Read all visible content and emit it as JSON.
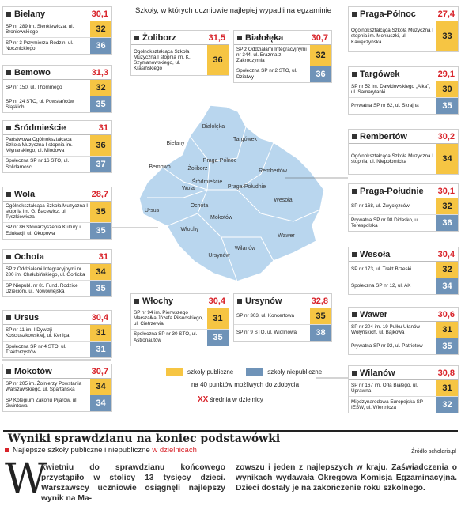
{
  "header": {
    "title": "Szkoły, w których uczniowie najlepiej wypadli na egzaminie"
  },
  "districts": [
    {
      "name": "Bielany",
      "average": "30,1",
      "schools": [
        {
          "name": "SP nr 289 im. Sienkiewicza, ul. Broniewskiego",
          "score": "32",
          "color": "#f6c543"
        },
        {
          "name": "SP nr 3 Przymierza Rodzin, ul. Nocznickiego",
          "score": "36",
          "color": "#6f93b8"
        }
      ]
    },
    {
      "name": "Bemowo",
      "average": "31,3",
      "schools": [
        {
          "name": "SP nr 150, ul. Thommego",
          "score": "32",
          "color": "#f6c543"
        },
        {
          "name": "SP nr 24 STO, ul. Powstańców Śląskich",
          "score": "35",
          "color": "#6f93b8"
        }
      ]
    },
    {
      "name": "Śródmieście",
      "average": "31",
      "schools": [
        {
          "name": "Państwowa Ogólnokształcąca Szkoła Muzyczna I stopnia im. Młynarskiego, ul. Miodowa",
          "score": "36",
          "color": "#f6c543"
        },
        {
          "name": "Społeczna SP nr 16 STO, ul. Solidarności",
          "score": "37",
          "color": "#6f93b8"
        }
      ]
    },
    {
      "name": "Wola",
      "average": "28,7",
      "schools": [
        {
          "name": "Ogólnokształcąca Szkoła Muzyczna I stopnia im. G. Bacewicz, ul. Tyszkiewicza",
          "score": "35",
          "color": "#f6c543"
        },
        {
          "name": "SP nr 86 Stowarzyszenia Kultury i Edukacji, ul. Okopowa",
          "score": "35",
          "color": "#6f93b8"
        }
      ]
    },
    {
      "name": "Ochota",
      "average": "31",
      "schools": [
        {
          "name": "SP z Oddziałami Integracyjnymi nr 280 im. Chałubińskiego, ul. Gorlicka",
          "score": "34",
          "color": "#f6c543"
        },
        {
          "name": "SP Niepubl. nr 81 Fund. Rodzice Dzieciom, ul. Nowowiejska",
          "score": "35",
          "color": "#6f93b8"
        }
      ]
    },
    {
      "name": "Ursus",
      "average": "30,4",
      "schools": [
        {
          "name": "SP nr 11 im. I Dywizji Kościuszkowskiej, ul. Keniga",
          "score": "31",
          "color": "#f6c543"
        },
        {
          "name": "Społeczna SP nr 4 STO, ul. Traktorzystów",
          "score": "31",
          "color": "#6f93b8"
        }
      ]
    },
    {
      "name": "Mokotów",
      "average": "30,7",
      "schools": [
        {
          "name": "SP nr 205 im. Żołnierzy Powstania Warszawskiego, ul. Spartańska",
          "score": "34",
          "color": "#f6c543"
        },
        {
          "name": "SP Kolegium Zakonu Pijarów, ul. Gwintowa",
          "score": "34",
          "color": "#6f93b8"
        }
      ]
    },
    {
      "name": "Żoliborz",
      "average": "31,5",
      "schools": [
        {
          "name": "Ogólnokształcąca Szkoła Muzyczna I stopnia im. K. Szymanowskiego, ul. Krasińskiego",
          "score": "36",
          "color": "#f6c543"
        }
      ]
    },
    {
      "name": "Białołęka",
      "average": "30,7",
      "schools": [
        {
          "name": "SP z Oddziałami Integracyjnymi nr 344, ul. Erazma z Zakroczymia",
          "score": "32",
          "color": "#f6c543"
        },
        {
          "name": "Społeczna SP nr 2 STO, ul. Dziatwy",
          "score": "36",
          "color": "#6f93b8"
        }
      ]
    },
    {
      "name": "Włochy",
      "average": "30,4",
      "schools": [
        {
          "name": "SP nr 94 im. Pierwszego Marszałka Józefa Piłsudskiego, ul. Cietrzewia",
          "score": "31",
          "color": "#f6c543"
        },
        {
          "name": "Społeczna SP nr 30 STO, ul. Astronautów",
          "score": "35",
          "color": "#6f93b8"
        }
      ]
    },
    {
      "name": "Ursynów",
      "average": "32,8",
      "schools": [
        {
          "name": "SP nr 303, ul. Koncertowa",
          "score": "35",
          "color": "#f6c543"
        },
        {
          "name": "SP nr 9 STO, ul. Wiolinowa",
          "score": "38",
          "color": "#6f93b8"
        }
      ]
    },
    {
      "name": "Praga-Północ",
      "average": "27,4",
      "schools": [
        {
          "name": "Ogólnokształcąca Szkoła Muzyczna I stopnia im. Moniuszki, ul. Kawęczyńska",
          "score": "33",
          "color": "#f6c543"
        }
      ]
    },
    {
      "name": "Targówek",
      "average": "29,1",
      "schools": [
        {
          "name": "SP nr 52 im. Dawidowskiego „Alka”, ul. Samarytanki",
          "score": "30",
          "color": "#f6c543"
        },
        {
          "name": "Prywatna SP nr 62, ul. Skrajna",
          "score": "35",
          "color": "#6f93b8"
        }
      ]
    },
    {
      "name": "Rembertów",
      "average": "30,2",
      "schools": [
        {
          "name": "Ogólnokształcąca Szkoła Muzyczna I stopnia, ul. Niepołomicka",
          "score": "34",
          "color": "#f6c543"
        }
      ]
    },
    {
      "name": "Praga-Południe",
      "average": "30,1",
      "schools": [
        {
          "name": "SP nr 168, ul. Zwycięzców",
          "score": "32",
          "color": "#f6c543"
        },
        {
          "name": "Prywatna SP nr 98 Didasko, ul. Terespolska",
          "score": "36",
          "color": "#6f93b8"
        }
      ]
    },
    {
      "name": "Wesoła",
      "average": "30,4",
      "schools": [
        {
          "name": "SP nr 173, ul. Trakt Brzeski",
          "score": "32",
          "color": "#f6c543"
        },
        {
          "name": "Społeczna SP nr 12, ul. AK",
          "score": "34",
          "color": "#6f93b8"
        }
      ]
    },
    {
      "name": "Wawer",
      "average": "30,6",
      "schools": [
        {
          "name": "SP nr 204 im. 19 Pułku Ułanów Wołyńskich, ul. Bajkowa",
          "score": "31",
          "color": "#f6c543"
        },
        {
          "name": "Prywatna SP nr 92, ul. Patriotów",
          "score": "35",
          "color": "#6f93b8"
        }
      ]
    },
    {
      "name": "Wilanów",
      "average": "30,8",
      "schools": [
        {
          "name": "SP nr 167 im. Orła Białego, ul. Uprawna",
          "score": "31",
          "color": "#f6c543"
        },
        {
          "name": "Międzynarodowa Europejska SP IESW, ul. Wiertnicza",
          "score": "32",
          "color": "#6f93b8"
        }
      ]
    }
  ],
  "map": {
    "labels": [
      "Białołęka",
      "Bielany",
      "Targówek",
      "Praga-Północ",
      "Bemowo",
      "Żoliborz",
      "Rembertów",
      "Wola",
      "Śródmieście",
      "Praga-Południe",
      "Ochota",
      "Ursus",
      "Wesoła",
      "Mokotów",
      "Włochy",
      "Wawer",
      "Wilanów",
      "Ursynów"
    ]
  },
  "legend": {
    "public": "szkoły publiczne",
    "nonpublic": "szkoły niepubliczne",
    "note": "na 40 punktów możliwych do zdobycia",
    "avg_marker": "XX",
    "avg_text": "średnia w dzielnicy"
  },
  "footer": {
    "title": "Wyniki sprawdzianu na koniec podstawówki",
    "subtitle": "Najlepsze szkoły publiczne i niepubliczne",
    "subtitle_accent": "w dzielnicach",
    "source": "Źródło scholaris.pl"
  },
  "article": {
    "drop_cap": "W",
    "columns": [
      "kwietniu do sprawdzianu końcowego przystąpiło w stolicy 13 tysięcy dzieci. Warszawscy uczniowie osiągnęli najlepszy wynik na Ma-",
      "zowszu i jeden z najlepszych w kraju. Zaświadczenia o wynikach wydawała Okręgowa Komisja Egzaminacyjna. Dzieci dostały je na zakończenie roku szkolnego."
    ]
  }
}
